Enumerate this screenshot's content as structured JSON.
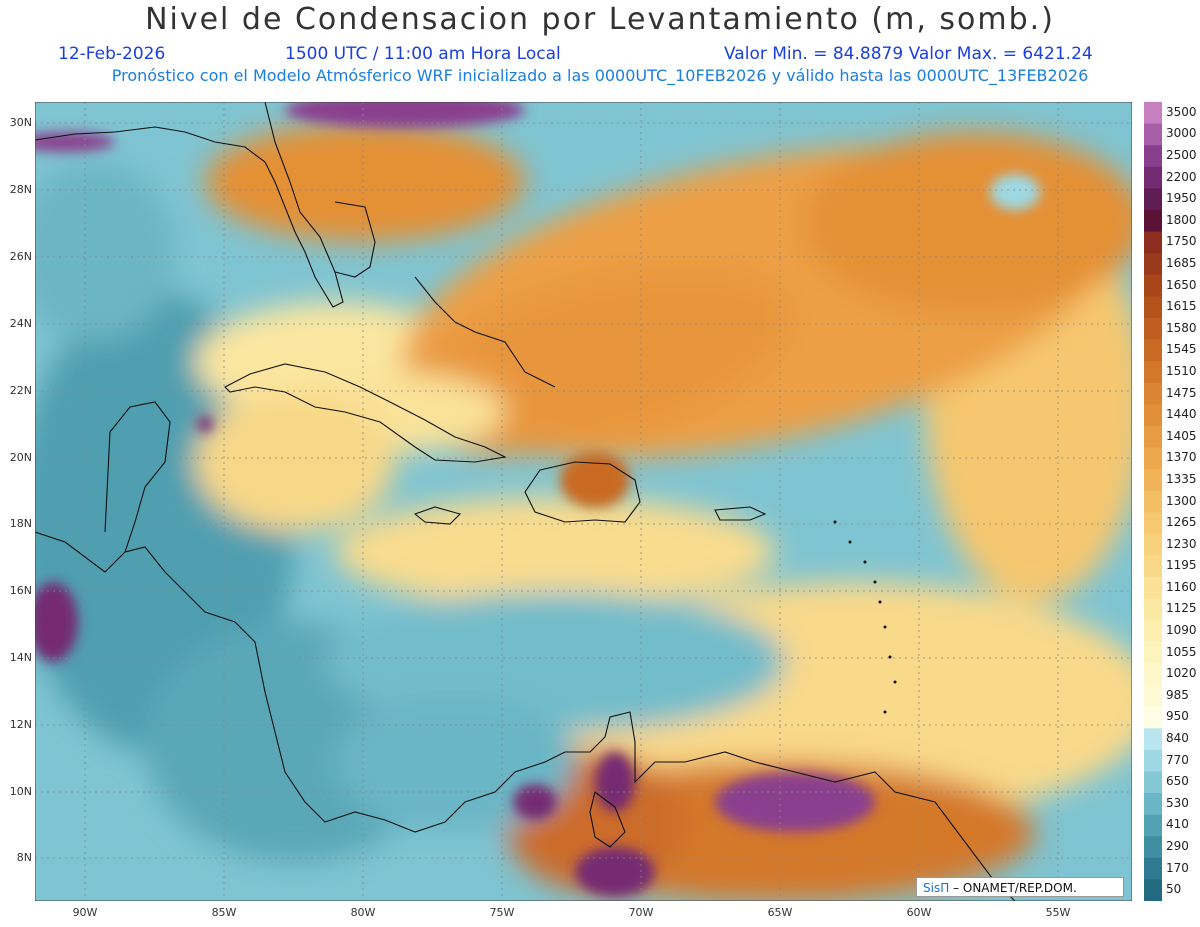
{
  "title": "Nivel de Condensacion por Levantamiento (m, somb.)",
  "date": "12-Feb-2026",
  "time": "1500 UTC / 11:00 am Hora Local",
  "minmax": "Valor Min. = 84.8879   Valor Max. = 6421.24",
  "model_line": "Pronóstico con el Modelo Atmósferico WRF inicializado a las 0000UTC_10FEB2026 y válido hasta las  0000UTC_13FEB2026",
  "lat_labels": [
    "30N",
    "28N",
    "26N",
    "24N",
    "22N",
    "20N",
    "18N",
    "16N",
    "14N",
    "12N",
    "10N",
    "8N"
  ],
  "lon_labels": [
    "90W",
    "85W",
    "80W",
    "75W",
    "70W",
    "65W",
    "60W",
    "55W"
  ],
  "colorbar": {
    "levels": [
      "3500",
      "3000",
      "2500",
      "2200",
      "1950",
      "1800",
      "1750",
      "1685",
      "1650",
      "1615",
      "1580",
      "1545",
      "1510",
      "1475",
      "1440",
      "1405",
      "1370",
      "1335",
      "1300",
      "1265",
      "1230",
      "1195",
      "1160",
      "1125",
      "1090",
      "1055",
      "1020",
      "985",
      "950",
      "840",
      "770",
      "650",
      "530",
      "410",
      "290",
      "170",
      "50"
    ],
    "colors": [
      "#c77fc0",
      "#a85fa8",
      "#8a3f8e",
      "#742a72",
      "#5e1c55",
      "#5a1236",
      "#8c2d1e",
      "#9a3a1a",
      "#a8461a",
      "#b4521c",
      "#bf5e20",
      "#c96a24",
      "#d3772a",
      "#db8431",
      "#e29038",
      "#e89c42",
      "#eda84c",
      "#f1b358",
      "#f4be64",
      "#f6c870",
      "#f8d17c",
      "#f9d988",
      "#fae195",
      "#fbe8a2",
      "#fcefb0",
      "#fdf3bd",
      "#fef7c9",
      "#fffad6",
      "#fffde3",
      "#b9e6ee",
      "#9ed8e4",
      "#84c8d6",
      "#6ab6c6",
      "#52a2b4",
      "#3f8ea2",
      "#2f7a90",
      "#226a80"
    ]
  },
  "credit": {
    "sis": "SisΠ",
    "org": "– ONAMET/REP.DOM."
  }
}
